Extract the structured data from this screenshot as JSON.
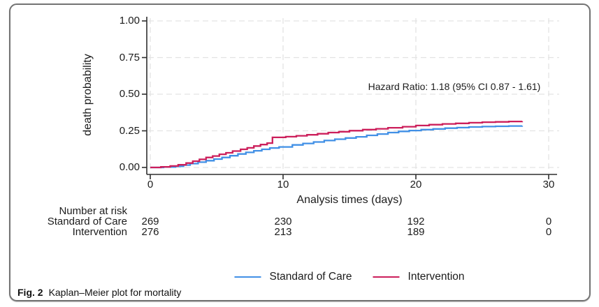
{
  "figure": {
    "caption_label": "Fig. 2",
    "caption_text": "Kaplan–Meier plot for mortality"
  },
  "chart_data": {
    "type": "line",
    "subtype": "kaplan-meier-step",
    "title": "",
    "ylabel": "death probability",
    "xlabel": "Analysis times (days)",
    "annotation": "Hazard Ratio: 1.18 (95% CI 0.87 - 1.61)",
    "xlim": [
      0,
      30
    ],
    "ylim": [
      0,
      1
    ],
    "grid": "dashed",
    "legend_position": "bottom",
    "x_ticks": [
      {
        "value": 0,
        "label": "0"
      },
      {
        "value": 10,
        "label": "10"
      },
      {
        "value": 20,
        "label": "20"
      },
      {
        "value": 30,
        "label": "30"
      }
    ],
    "y_ticks": [
      {
        "value": 0,
        "label": "0.00"
      },
      {
        "value": 0.25,
        "label": "0.25"
      },
      {
        "value": 0.5,
        "label": "0.50"
      },
      {
        "value": 0.75,
        "label": "0.75"
      },
      {
        "value": 1,
        "label": "1.00"
      }
    ],
    "colors": {
      "standard_of_care": "#4190e6",
      "intervention": "#cc1f5b",
      "grid": "#e3e3e3",
      "axis": "#2e2e2e"
    },
    "series": [
      {
        "name": "Standard of Care",
        "color_key": "standard_of_care",
        "steps": [
          [
            0,
            0
          ],
          [
            1,
            0.003
          ],
          [
            1.9,
            0.008
          ],
          [
            2.5,
            0.016
          ],
          [
            3,
            0.026
          ],
          [
            3.6,
            0.036
          ],
          [
            4.2,
            0.046
          ],
          [
            4.8,
            0.057
          ],
          [
            5.4,
            0.068
          ],
          [
            6,
            0.08
          ],
          [
            6.6,
            0.092
          ],
          [
            7.2,
            0.103
          ],
          [
            7.8,
            0.114
          ],
          [
            8.4,
            0.124
          ],
          [
            9,
            0.133
          ],
          [
            9.7,
            0.14
          ],
          [
            10.7,
            0.154
          ],
          [
            11.5,
            0.164
          ],
          [
            12.3,
            0.174
          ],
          [
            13.1,
            0.184
          ],
          [
            13.9,
            0.193
          ],
          [
            14.7,
            0.201
          ],
          [
            15.5,
            0.209
          ],
          [
            16.3,
            0.219
          ],
          [
            17.1,
            0.228
          ],
          [
            17.9,
            0.238
          ],
          [
            18.7,
            0.246
          ],
          [
            19.5,
            0.252
          ],
          [
            20.4,
            0.258
          ],
          [
            21.3,
            0.263
          ],
          [
            22.2,
            0.268
          ],
          [
            23.1,
            0.272
          ],
          [
            24,
            0.276
          ],
          [
            25,
            0.279
          ],
          [
            26,
            0.281
          ],
          [
            27,
            0.283
          ],
          [
            28,
            0.285
          ]
        ]
      },
      {
        "name": "Intervention",
        "color_key": "intervention",
        "steps": [
          [
            0,
            0
          ],
          [
            0.8,
            0.004
          ],
          [
            1.5,
            0.01
          ],
          [
            2.1,
            0.018
          ],
          [
            2.7,
            0.03
          ],
          [
            3.2,
            0.043
          ],
          [
            3.7,
            0.055
          ],
          [
            4.2,
            0.068
          ],
          [
            4.7,
            0.078
          ],
          [
            5.2,
            0.09
          ],
          [
            5.7,
            0.1
          ],
          [
            6.2,
            0.112
          ],
          [
            6.8,
            0.124
          ],
          [
            7.3,
            0.134
          ],
          [
            7.8,
            0.146
          ],
          [
            8.3,
            0.156
          ],
          [
            8.8,
            0.166
          ],
          [
            9.2,
            0.205
          ],
          [
            10.2,
            0.21
          ],
          [
            11,
            0.216
          ],
          [
            11.8,
            0.223
          ],
          [
            12.6,
            0.23
          ],
          [
            13.4,
            0.238
          ],
          [
            14.2,
            0.244
          ],
          [
            15,
            0.251
          ],
          [
            16,
            0.258
          ],
          [
            17,
            0.264
          ],
          [
            17.9,
            0.271
          ],
          [
            19,
            0.278
          ],
          [
            20,
            0.286
          ],
          [
            21,
            0.292
          ],
          [
            22,
            0.297
          ],
          [
            23,
            0.301
          ],
          [
            24,
            0.305
          ],
          [
            25,
            0.309
          ],
          [
            26,
            0.311
          ],
          [
            27,
            0.314
          ],
          [
            28,
            0.316
          ]
        ]
      }
    ]
  },
  "risk_table": {
    "title": "Number at risk",
    "time_points": [
      0,
      10,
      20,
      30
    ],
    "rows": [
      {
        "label": "Standard of Care",
        "values": [
          "269",
          "230",
          "192",
          "0"
        ]
      },
      {
        "label": "Intervention",
        "values": [
          "276",
          "213",
          "189",
          "0"
        ]
      }
    ]
  }
}
